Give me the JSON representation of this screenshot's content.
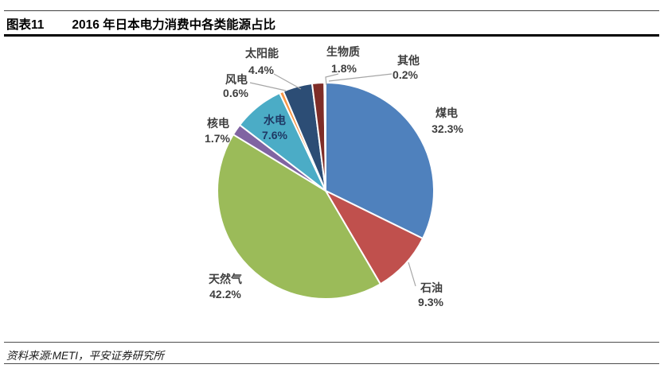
{
  "header": {
    "figure_label": "图表11",
    "title": "2016 年日本电力消费中各类能源占比"
  },
  "footer": {
    "source": "资料来源:METI，平安证券研究所"
  },
  "chart_data": {
    "type": "pie",
    "title": "2016 年日本电力消费中各类能源占比",
    "unit": "%",
    "start_angle_deg": 0,
    "direction": "clockwise",
    "labels_show": "name and percent",
    "legend": "none",
    "series": [
      {
        "name": "煤电",
        "value": 32.3,
        "color": "#4F81BD"
      },
      {
        "name": "石油",
        "value": 9.3,
        "color": "#C0504D"
      },
      {
        "name": "天然气",
        "value": 42.2,
        "color": "#9BBB59"
      },
      {
        "name": "核电",
        "value": 1.7,
        "color": "#8064A2"
      },
      {
        "name": "水电",
        "value": 7.6,
        "color": "#4BACC6"
      },
      {
        "name": "风电",
        "value": 0.6,
        "color": "#F79646"
      },
      {
        "name": "太阳能",
        "value": 4.4,
        "color": "#2C4D75"
      },
      {
        "name": "生物质",
        "value": 1.8,
        "color": "#7E2D28"
      },
      {
        "name": "其他",
        "value": 0.2,
        "color": "#92CDDC"
      }
    ],
    "label_text_color": "#3F3F3F",
    "hydro_label_color": "#1F3864",
    "leader_line_color": "#A6A6A6",
    "slice_border_color": "#FFFFFF"
  }
}
